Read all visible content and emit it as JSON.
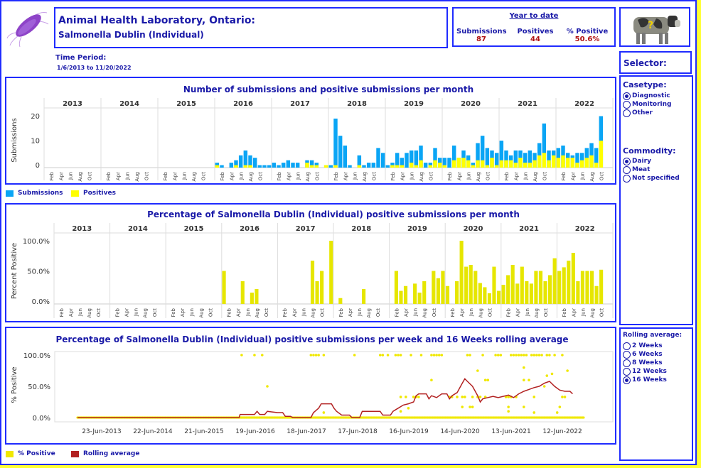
{
  "header": {
    "title": "Animal Health Laboratory, Ontario:",
    "subtitle": "Salmonella Dublin  (Individual)",
    "logo_icon": "bacterium-icon",
    "cow_icon": "cow-question-icon"
  },
  "ytd": {
    "heading": "Year to date",
    "submissions_label": "Submissions",
    "submissions_value": "87",
    "positives_label": "Positives",
    "positives_value": "44",
    "pct_label": "% Positive",
    "pct_value": "50.6%"
  },
  "time_period": {
    "label": "Time Period:",
    "value": "1/6/2013 to 11/20/2022"
  },
  "selector": {
    "title": "Selector:",
    "casetype": {
      "label": "Casetype:",
      "options": [
        "Diagnostic",
        "Monitoring",
        "Other"
      ],
      "selected": "Diagnostic"
    },
    "commodity": {
      "label": "Commodity:",
      "options": [
        "Dairy",
        "Meat",
        "Not specified"
      ],
      "selected": "Dairy"
    },
    "rolling": {
      "label": "Rolling average:",
      "options": [
        "2 Weeks",
        "6 Weeks",
        "8 Weeks",
        "12 Weeks",
        "16 Weeks"
      ],
      "selected": "16 Weeks"
    }
  },
  "colors": {
    "border": "#1f2bff",
    "title": "#1a1aa8",
    "value_red": "#b01010",
    "submissions": "#0aa5f5",
    "positives": "#ffff00",
    "pct_bar": "#e6e600",
    "rolling": "#b22222",
    "dot": "#f0e800"
  },
  "chart_data": [
    {
      "type": "bar",
      "title": "Number of submissions and positive submissions per month",
      "ylabel": "Submissions",
      "ylim": [
        0,
        22
      ],
      "yticks": [
        0,
        10,
        20
      ],
      "years": [
        "2013",
        "2014",
        "2015",
        "2016",
        "2017",
        "2018",
        "2019",
        "2020",
        "2021",
        "2022"
      ],
      "month_ticks": [
        "Feb",
        "Apr",
        "Jun",
        "Aug",
        "Oct"
      ],
      "legend": [
        {
          "name": "Submissions"
        },
        {
          "name": "Positives"
        }
      ],
      "series": [
        {
          "name": "Submissions",
          "values": {
            "2016": [
              2,
              1,
              0,
              2,
              3,
              5,
              7,
              5,
              4,
              1,
              1,
              1
            ],
            "2017": [
              2,
              1,
              2,
              3,
              2,
              2,
              0,
              3,
              3,
              2,
              0,
              1
            ],
            "2018": [
              1,
              20,
              13,
              9,
              1,
              0,
              5,
              1,
              2,
              2,
              8,
              6
            ],
            "2019": [
              1,
              2,
              6,
              4,
              6,
              7,
              7,
              9,
              2,
              2,
              8,
              4
            ],
            "2020": [
              4,
              4,
              9,
              4,
              7,
              5,
              2,
              10,
              13,
              8,
              7,
              6
            ],
            "2021": [
              11,
              7,
              5,
              7,
              7,
              6,
              7,
              6,
              10,
              18,
              7,
              7
            ],
            "2022": [
              8,
              9,
              6,
              5,
              6,
              6,
              8,
              10,
              8,
              21
            ]
          }
        },
        {
          "name": "Positives",
          "values": {
            "2016": [
              1,
              0,
              0,
              0,
              1,
              0,
              1,
              1,
              0,
              0,
              0,
              0
            ],
            "2017": [
              0,
              0,
              0,
              0,
              0,
              0,
              0,
              2,
              1,
              1,
              0,
              1
            ],
            "2018": [
              0,
              1,
              0,
              0,
              0,
              0,
              1,
              0,
              0,
              0,
              0,
              0
            ],
            "2019": [
              0,
              1,
              1,
              1,
              0,
              2,
              1,
              3,
              0,
              1,
              3,
              2
            ],
            "2020": [
              1,
              0,
              3,
              4,
              4,
              3,
              1,
              3,
              3,
              1,
              4,
              1
            ],
            "2021": [
              3,
              3,
              3,
              2,
              4,
              2,
              2,
              3,
              5,
              6,
              3,
              5
            ],
            "2022": [
              4,
              5,
              4,
              4,
              2,
              3,
              4,
              5,
              2,
              11
            ]
          }
        }
      ]
    },
    {
      "type": "bar",
      "title": "Percentage of Salmonella Dublin (Individual) positive submissions per month",
      "ylabel": "Percent Positive",
      "ylim": [
        0,
        100
      ],
      "yticks": [
        "0.0%",
        "50.0%",
        "100.0%"
      ],
      "years": [
        "2013",
        "2014",
        "2015",
        "2016",
        "2017",
        "2018",
        "2019",
        "2020",
        "2021",
        "2022"
      ],
      "month_ticks": [
        "Feb",
        "Apr",
        "Jun",
        "Aug",
        "Oct"
      ],
      "values": {
        "2016": [
          50,
          0,
          0,
          0,
          33,
          0,
          14,
          20,
          0,
          0,
          0,
          0
        ],
        "2017": [
          0,
          0,
          0,
          0,
          0,
          0,
          0,
          67,
          33,
          50,
          0,
          100
        ],
        "2018": [
          0,
          5,
          0,
          0,
          0,
          0,
          20,
          0,
          0,
          0,
          0,
          0
        ],
        "2019": [
          0,
          50,
          17,
          25,
          0,
          29,
          14,
          33,
          0,
          50,
          38,
          50
        ],
        "2020": [
          25,
          0,
          33,
          100,
          57,
          60,
          50,
          30,
          23,
          13,
          57,
          17
        ],
        "2021": [
          27,
          43,
          60,
          29,
          57,
          33,
          29,
          50,
          50,
          33,
          43,
          71
        ],
        "2022": [
          50,
          56,
          67,
          80,
          33,
          50,
          50,
          50,
          25,
          52
        ]
      }
    },
    {
      "type": "scatter",
      "title": "Percentage of Salmonella Dublin (Individual) positive submissions per week and 16 Weeks rolling average",
      "ylabel": "% Positive",
      "ylim": [
        0,
        100
      ],
      "yticks": [
        "0.0%",
        "50.0%",
        "100.0%"
      ],
      "xticks": [
        "23-Jun-2013",
        "22-Jun-2014",
        "21-Jun-2015",
        "19-Jun-2016",
        "18-Jun-2017",
        "17-Jun-2018",
        "16-Jun-2019",
        "14-Jun-2020",
        "13-Jun-2021",
        "12-Jun-2022"
      ],
      "legend": [
        {
          "name": "% Positive"
        },
        {
          "name": "Rolling average"
        }
      ],
      "xrange_years": [
        2013.0,
        2022.9
      ],
      "points_100": [
        2016.2,
        2016.45,
        2016.6,
        2017.55,
        2017.6,
        2017.65,
        2017.7,
        2017.8,
        2018.4,
        2018.9,
        2018.95,
        2019.05,
        2019.2,
        2019.25,
        2019.3,
        2019.5,
        2019.7,
        2019.9,
        2019.95,
        2020.0,
        2020.05,
        2020.1,
        2020.6,
        2020.65,
        2020.9,
        2021.15,
        2021.2,
        2021.25,
        2021.45,
        2021.5,
        2021.55,
        2021.6,
        2021.65,
        2021.7,
        2021.75,
        2021.85,
        2021.9,
        2021.95,
        2022.0,
        2022.05,
        2022.15,
        2022.2,
        2022.3,
        2022.45
      ],
      "points_mid": [
        [
          2016.7,
          50
        ],
        [
          2017.8,
          8
        ],
        [
          2019.3,
          33
        ],
        [
          2019.4,
          33
        ],
        [
          2019.55,
          33
        ],
        [
          2019.6,
          33
        ],
        [
          2019.65,
          33
        ],
        [
          2019.45,
          15
        ],
        [
          2019.3,
          10
        ],
        [
          2019.9,
          60
        ],
        [
          2020.25,
          33
        ],
        [
          2020.3,
          33
        ],
        [
          2020.4,
          33
        ],
        [
          2020.5,
          33
        ],
        [
          2020.55,
          33
        ],
        [
          2020.7,
          33
        ],
        [
          2020.8,
          33
        ],
        [
          2020.85,
          33
        ],
        [
          2020.95,
          33
        ],
        [
          2020.5,
          17
        ],
        [
          2020.65,
          17
        ],
        [
          2020.7,
          17
        ],
        [
          2020.8,
          75
        ],
        [
          2020.95,
          60
        ],
        [
          2021.0,
          60
        ],
        [
          2021.35,
          33
        ],
        [
          2021.4,
          33
        ],
        [
          2021.45,
          33
        ],
        [
          2021.55,
          33
        ],
        [
          2021.4,
          17
        ],
        [
          2021.4,
          10
        ],
        [
          2021.7,
          80
        ],
        [
          2021.7,
          60
        ],
        [
          2021.8,
          60
        ],
        [
          2021.9,
          33
        ],
        [
          2021.7,
          17
        ],
        [
          2021.9,
          8
        ],
        [
          2022.1,
          50
        ],
        [
          2022.15,
          67
        ],
        [
          2022.25,
          70
        ],
        [
          2022.4,
          17
        ],
        [
          2022.45,
          33
        ],
        [
          2022.5,
          33
        ],
        [
          2022.55,
          75
        ],
        [
          2022.35,
          8
        ]
      ],
      "rolling": [
        [
          2013.0,
          0
        ],
        [
          2016.15,
          0
        ],
        [
          2016.17,
          5
        ],
        [
          2016.45,
          5
        ],
        [
          2016.5,
          10
        ],
        [
          2016.55,
          5
        ],
        [
          2016.65,
          5
        ],
        [
          2016.7,
          10
        ],
        [
          2016.9,
          8
        ],
        [
          2017.0,
          8
        ],
        [
          2017.05,
          2
        ],
        [
          2017.15,
          2
        ],
        [
          2017.2,
          0
        ],
        [
          2017.55,
          0
        ],
        [
          2017.6,
          8
        ],
        [
          2017.7,
          15
        ],
        [
          2017.75,
          22
        ],
        [
          2017.95,
          22
        ],
        [
          2018.0,
          15
        ],
        [
          2018.05,
          10
        ],
        [
          2018.15,
          4
        ],
        [
          2018.3,
          4
        ],
        [
          2018.35,
          0
        ],
        [
          2018.5,
          0
        ],
        [
          2018.55,
          10
        ],
        [
          2018.9,
          10
        ],
        [
          2018.95,
          4
        ],
        [
          2019.1,
          4
        ],
        [
          2019.15,
          10
        ],
        [
          2019.25,
          15
        ],
        [
          2019.35,
          20
        ],
        [
          2019.45,
          22
        ],
        [
          2019.55,
          25
        ],
        [
          2019.6,
          35
        ],
        [
          2019.65,
          38
        ],
        [
          2019.8,
          38
        ],
        [
          2019.85,
          30
        ],
        [
          2019.9,
          35
        ],
        [
          2020.0,
          32
        ],
        [
          2020.1,
          38
        ],
        [
          2020.2,
          38
        ],
        [
          2020.25,
          30
        ],
        [
          2020.3,
          35
        ],
        [
          2020.4,
          40
        ],
        [
          2020.5,
          55
        ],
        [
          2020.55,
          62
        ],
        [
          2020.6,
          58
        ],
        [
          2020.7,
          50
        ],
        [
          2020.8,
          35
        ],
        [
          2020.85,
          25
        ],
        [
          2020.9,
          30
        ],
        [
          2021.0,
          32
        ],
        [
          2021.1,
          34
        ],
        [
          2021.2,
          32
        ],
        [
          2021.3,
          34
        ],
        [
          2021.4,
          36
        ],
        [
          2021.5,
          32
        ],
        [
          2021.6,
          38
        ],
        [
          2021.7,
          42
        ],
        [
          2021.8,
          45
        ],
        [
          2021.9,
          48
        ],
        [
          2022.0,
          50
        ],
        [
          2022.1,
          55
        ],
        [
          2022.2,
          58
        ],
        [
          2022.3,
          50
        ],
        [
          2022.4,
          44
        ],
        [
          2022.5,
          42
        ],
        [
          2022.6,
          42
        ],
        [
          2022.65,
          38
        ]
      ]
    }
  ]
}
